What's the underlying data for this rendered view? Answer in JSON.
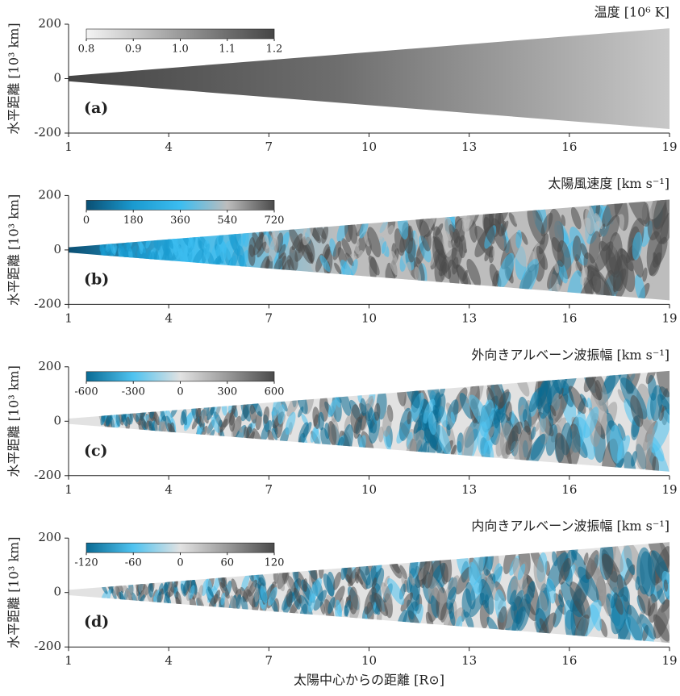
{
  "chart_data": [
    {
      "type": "field",
      "title": "温度 [10⁶ K]",
      "panel_label": "(a)",
      "ylabel": "水平距離 [10³ km]",
      "xlim": [
        1,
        19
      ],
      "xticks": [
        1,
        4,
        7,
        10,
        13,
        16,
        19
      ],
      "ylim": [
        -200,
        200
      ],
      "yticks": [
        -200,
        0,
        200
      ],
      "colorbar": {
        "lim": [
          0.8,
          1.2
        ],
        "ticks": [
          0.8,
          0.9,
          {
            "value": 1,
            "label": "1.0"
          },
          1.1,
          1.2
        ],
        "colormap": [
          "#f4f4f4",
          "#c8c8c8",
          "#9a9a9a",
          "#6e6e6e",
          "#454545"
        ]
      }
    },
    {
      "type": "field",
      "title": "太陽風速度 [km s⁻¹]",
      "panel_label": "(b)",
      "ylabel": "水平距離 [10³ km]",
      "xlim": [
        1,
        19
      ],
      "xticks": [
        1,
        4,
        7,
        10,
        13,
        16,
        19
      ],
      "ylim": [
        -200,
        200
      ],
      "yticks": [
        -200,
        0,
        200
      ],
      "colorbar": {
        "lim": [
          0,
          720
        ],
        "ticks": [
          0,
          180,
          360,
          540,
          720
        ],
        "colormap": [
          "#0a4f73",
          "#1a9ad0",
          "#3cbdf0",
          "#bdbdbd",
          "#4a4a4a"
        ]
      }
    },
    {
      "type": "field",
      "title": "外向きアルベーン波振幅 [km s⁻¹]",
      "panel_label": "(c)",
      "ylabel": "水平距離 [10³ km]",
      "xlim": [
        1,
        19
      ],
      "xticks": [
        1,
        4,
        7,
        10,
        13,
        16,
        19
      ],
      "ylim": [
        -200,
        200
      ],
      "yticks": [
        -200,
        0,
        200
      ],
      "colorbar": {
        "lim": [
          -600,
          600
        ],
        "ticks": [
          -600,
          -300,
          0,
          300,
          600
        ],
        "colormap": [
          "#0a6b94",
          "#4fc3f0",
          "#e2e2e2",
          "#9a9a9a",
          "#4a4a4a"
        ]
      }
    },
    {
      "type": "field",
      "title": "内向きアルベーン波振幅 [km s⁻¹]",
      "panel_label": "(d)",
      "ylabel": "水平距離 [10³ km]",
      "xlabel": "太陽中心からの距離  [R⊙]",
      "xlim": [
        1,
        19
      ],
      "xticks": [
        1,
        4,
        7,
        10,
        13,
        16,
        19
      ],
      "ylim": [
        -200,
        200
      ],
      "yticks": [
        -200,
        0,
        200
      ],
      "colorbar": {
        "lim": [
          -120,
          120
        ],
        "ticks": [
          -120,
          -60,
          0,
          60,
          120
        ],
        "colormap": [
          "#0a6b94",
          "#4fc3f0",
          "#e2e2e2",
          "#9a9a9a",
          "#4a4a4a"
        ]
      }
    }
  ]
}
